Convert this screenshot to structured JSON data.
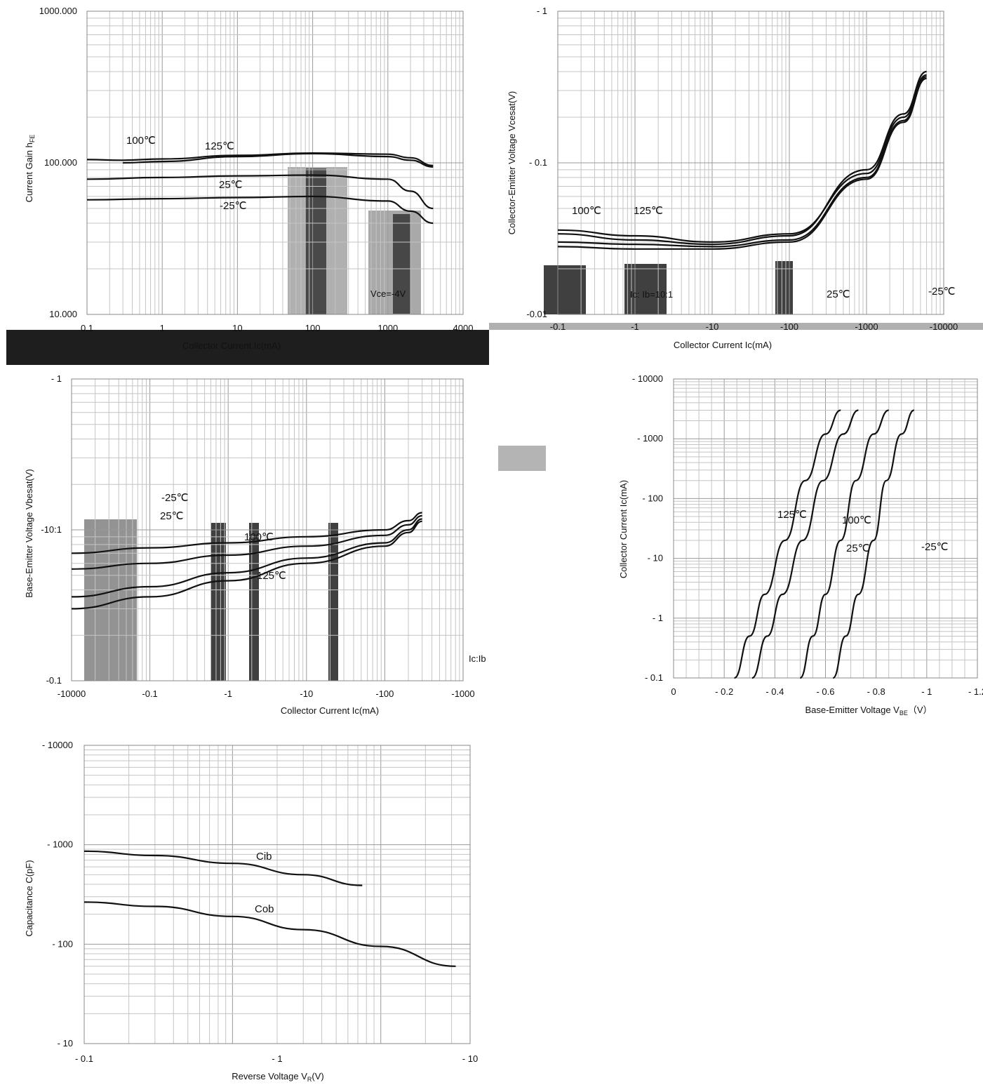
{
  "chart_data": [
    {
      "type": "line",
      "id": "hfe",
      "xscale": "log",
      "yscale": "log",
      "xlim": [
        0.1,
        10000
      ],
      "ylim": [
        10,
        1000
      ],
      "xticks": [
        "0.1",
        "1",
        "10",
        "100",
        "1000",
        "4000"
      ],
      "yticks": [
        "1000.000",
        "100.000",
        "10.000"
      ],
      "xlabel": "Collector Current  Ic(mA)",
      "ylabel": "Current Gain  h",
      "ylabel_sub": "FE",
      "annotations": [
        "Vce=-4V"
      ],
      "series": [
        {
          "name": "100℃",
          "x": [
            0.1,
            0.3,
            1,
            10,
            100,
            1000,
            2000,
            4000
          ],
          "y": [
            105,
            104,
            106,
            112,
            116,
            114,
            108,
            96
          ]
        },
        {
          "name": "125℃",
          "x": [
            0.3,
            1,
            10,
            100,
            1000,
            2000,
            4000
          ],
          "y": [
            100,
            102,
            110,
            115,
            110,
            104,
            94
          ]
        },
        {
          "name": "25℃",
          "x": [
            0.1,
            1,
            10,
            100,
            1000,
            2000,
            4000
          ],
          "y": [
            78,
            80,
            82,
            83,
            78,
            65,
            50
          ]
        },
        {
          "name": "-25℃",
          "x": [
            0.1,
            1,
            10,
            100,
            1000,
            2000,
            4000
          ],
          "y": [
            57,
            58,
            59,
            60,
            56,
            48,
            40
          ]
        }
      ]
    },
    {
      "type": "line",
      "id": "vcesat",
      "xscale": "log",
      "yscale": "log",
      "xlim": [
        0.1,
        10000
      ],
      "ylim": [
        0.01,
        1
      ],
      "xticks": [
        "-0.1",
        "-1",
        "-10",
        "-100",
        "-1000",
        "-10000"
      ],
      "yticks": [
        "- 1",
        "- 0.1",
        "-0.01"
      ],
      "xlabel": "Collector Current  Ic(mA)",
      "ylabel": "Collector-Emitter Voltage  Vcesat(V)",
      "annotations": [
        "Ic: Ib=10:1"
      ],
      "series": [
        {
          "name": "100℃",
          "x": [
            0.1,
            1,
            10,
            100,
            1000,
            3000,
            6000
          ],
          "y": [
            0.036,
            0.033,
            0.03,
            0.034,
            0.085,
            0.2,
            0.38
          ]
        },
        {
          "name": "125℃",
          "x": [
            0.1,
            1,
            10,
            100,
            1000,
            3000,
            6000
          ],
          "y": [
            0.034,
            0.031,
            0.029,
            0.033,
            0.09,
            0.21,
            0.4
          ]
        },
        {
          "name": "25℃",
          "x": [
            0.1,
            1,
            10,
            100,
            1000,
            3000,
            6000
          ],
          "y": [
            0.03,
            0.029,
            0.028,
            0.031,
            0.08,
            0.19,
            0.37
          ]
        },
        {
          "name": "-25℃",
          "x": [
            0.1,
            1,
            10,
            100,
            1000,
            3000,
            6000
          ],
          "y": [
            0.028,
            0.027,
            0.027,
            0.03,
            0.078,
            0.185,
            0.36
          ]
        }
      ]
    },
    {
      "type": "line",
      "id": "vbesat",
      "xscale": "log",
      "yscale": "log",
      "xlim": [
        0.1,
        10000
      ],
      "ylim": [
        0.1,
        10
      ],
      "xticks": [
        "-10000",
        "-0.1",
        "-1",
        "-10",
        "-100",
        "-1000"
      ],
      "yticks": [
        "- 1",
        "-10:1",
        "-0.1"
      ],
      "xlabel": "Collector Current  Ic(mA)",
      "ylabel": "Base-Emitter Voltage  Vbesat(V)",
      "annotations": [
        "Ic:Ib"
      ],
      "series": [
        {
          "name": "-25℃",
          "x": [
            0.1,
            1,
            10,
            100,
            1000,
            2000,
            3000
          ],
          "y": [
            0.7,
            0.76,
            0.82,
            0.9,
            1.0,
            1.15,
            1.3
          ]
        },
        {
          "name": "25℃",
          "x": [
            0.1,
            1,
            10,
            100,
            1000,
            2000,
            3000
          ],
          "y": [
            0.55,
            0.6,
            0.68,
            0.78,
            0.92,
            1.08,
            1.24
          ]
        },
        {
          "name": "100℃",
          "x": [
            0.1,
            1,
            10,
            100,
            1000,
            2000,
            3000
          ],
          "y": [
            0.36,
            0.42,
            0.52,
            0.65,
            0.82,
            1.0,
            1.18
          ]
        },
        {
          "name": "125℃",
          "x": [
            0.1,
            1,
            10,
            100,
            1000,
            2000,
            3000
          ],
          "y": [
            0.3,
            0.36,
            0.46,
            0.6,
            0.78,
            0.96,
            1.14
          ]
        }
      ]
    },
    {
      "type": "line",
      "id": "ic_vbe",
      "xscale": "linear",
      "yscale": "log",
      "xlim": [
        0,
        1.2
      ],
      "ylim": [
        0.1,
        10000
      ],
      "xticks": [
        "0",
        "- 0.2",
        "- 0.4",
        "- 0.6",
        "- 0.8",
        "- 1",
        "- 1.2"
      ],
      "yticks": [
        "- 10000",
        "- 1000",
        "- 100",
        "- 10",
        "- 1",
        "- 0.1"
      ],
      "xlabel": "Base-Emitter Voltage  V",
      "xlabel_sub": "BE",
      "xlabel_unit": "（V）",
      "ylabel": "Collector Current  Ic(mA)",
      "series": [
        {
          "name": "125℃",
          "x": [
            0.24,
            0.3,
            0.36,
            0.44,
            0.52,
            0.6,
            0.66
          ],
          "y": [
            0.1,
            0.5,
            2.5,
            20,
            200,
            1200,
            3000
          ]
        },
        {
          "name": "100℃",
          "x": [
            0.31,
            0.37,
            0.43,
            0.51,
            0.59,
            0.67,
            0.73
          ],
          "y": [
            0.1,
            0.5,
            2.5,
            20,
            200,
            1200,
            3000
          ]
        },
        {
          "name": "25℃",
          "x": [
            0.5,
            0.55,
            0.6,
            0.66,
            0.72,
            0.79,
            0.85
          ],
          "y": [
            0.1,
            0.5,
            2.5,
            20,
            200,
            1200,
            3000
          ]
        },
        {
          "name": "-25℃",
          "x": [
            0.63,
            0.68,
            0.73,
            0.79,
            0.84,
            0.9,
            0.95
          ],
          "y": [
            0.1,
            0.5,
            2.5,
            20,
            200,
            1200,
            3000
          ]
        }
      ]
    },
    {
      "type": "line",
      "id": "capacitance",
      "xscale": "log",
      "yscale": "log",
      "xlim": [
        0.1,
        40
      ],
      "ylim": [
        10,
        10000
      ],
      "xticks": [
        "- 0.1",
        "- 1",
        "- 10"
      ],
      "yticks": [
        "- 10000",
        "- 1000",
        "- 100",
        "- 10"
      ],
      "xlabel": "Reverse Voltage  V",
      "xlabel_sub": "R",
      "xlabel_unit": "(V)",
      "ylabel": "Capacitance  C(pF)",
      "series": [
        {
          "name": "Cib",
          "x": [
            0.1,
            0.3,
            1,
            3,
            7.5
          ],
          "y": [
            860,
            780,
            650,
            500,
            390
          ]
        },
        {
          "name": "Cob",
          "x": [
            0.1,
            0.3,
            1,
            3,
            10,
            32
          ],
          "y": [
            265,
            240,
            190,
            140,
            95,
            60
          ]
        }
      ]
    }
  ]
}
